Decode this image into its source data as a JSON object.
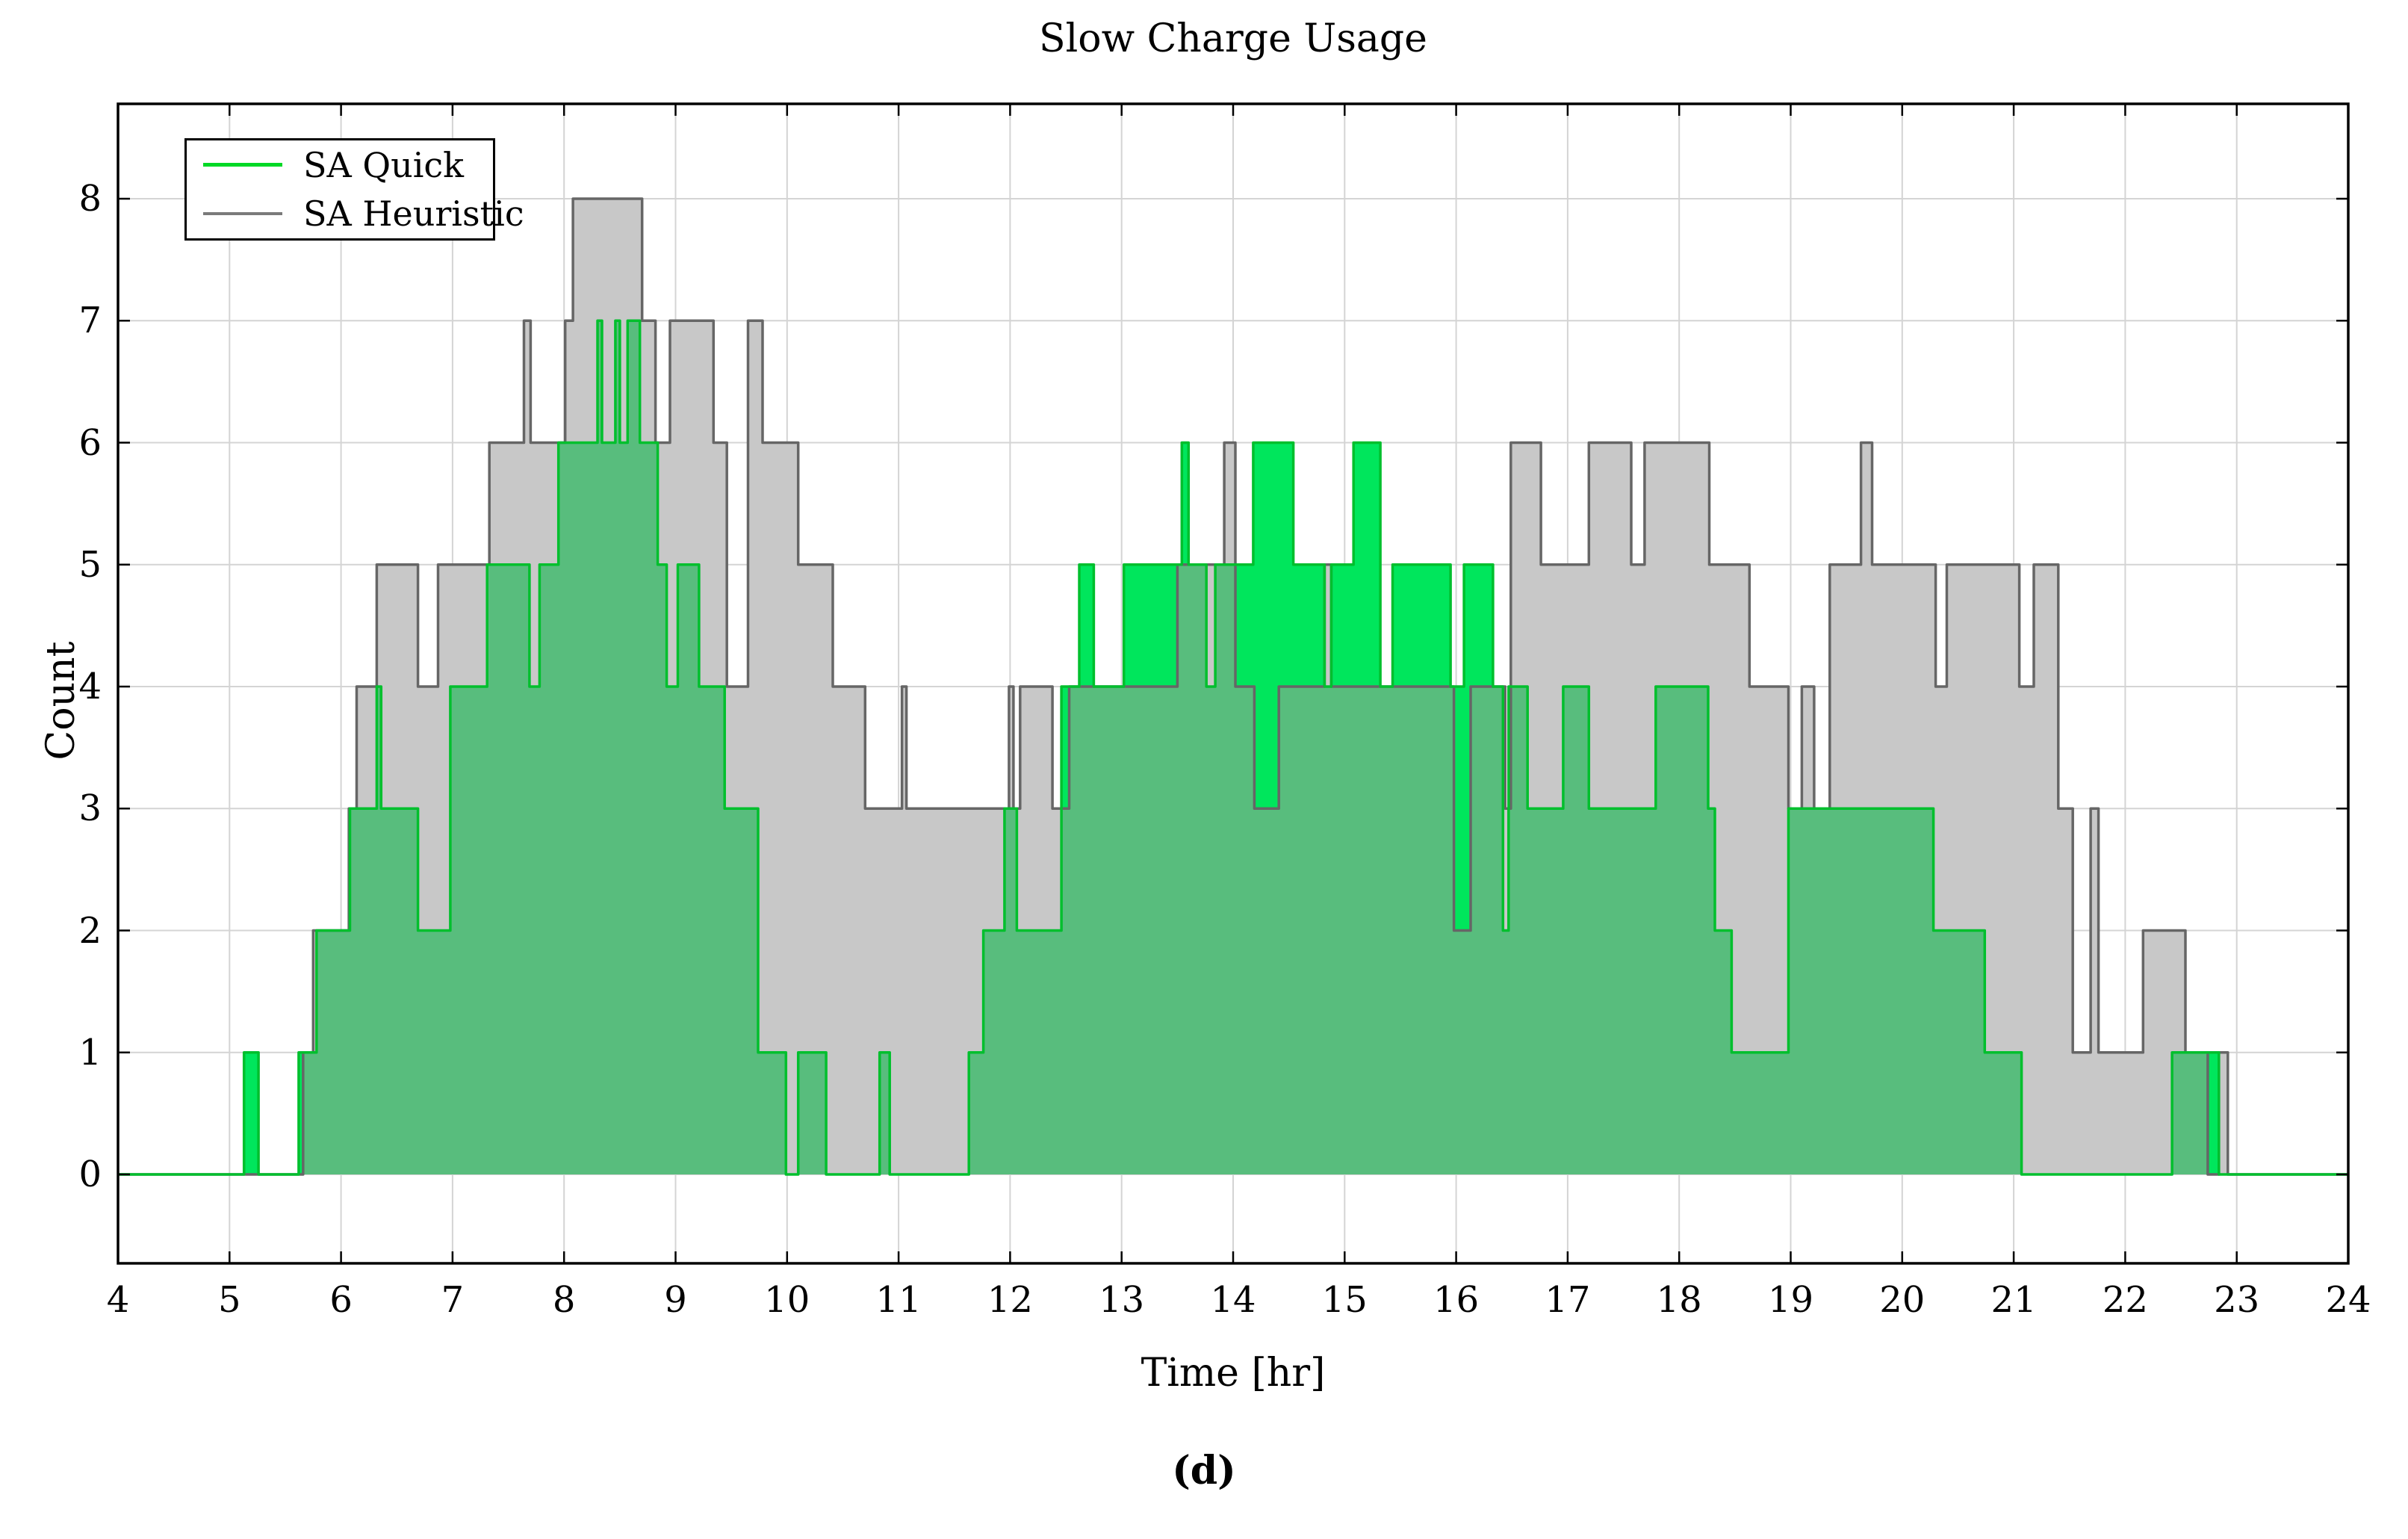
{
  "title": "Slow Charge Usage",
  "caption": "(d)",
  "axes": {
    "xlabel": "Time [hr]",
    "ylabel": "Count",
    "xticks": [
      4,
      5,
      6,
      7,
      8,
      9,
      10,
      11,
      12,
      13,
      14,
      15,
      16,
      17,
      18,
      19,
      20,
      21,
      22,
      23,
      24
    ],
    "yticks": [
      0,
      1,
      2,
      3,
      4,
      5,
      6,
      7,
      8
    ]
  },
  "legend": {
    "items": [
      {
        "label": "SA Quick",
        "color": "#00d926"
      },
      {
        "label": "SA Heuristic",
        "color": "#7a7a7a"
      }
    ]
  },
  "chart_data": {
    "type": "area",
    "subtype": "step-area-overlay",
    "title": "Slow Charge Usage",
    "xlabel": "Time [hr]",
    "ylabel": "Count",
    "xlim": [
      4,
      24
    ],
    "ylim": [
      0,
      8
    ],
    "grid": true,
    "legend_position": "top-left",
    "colors": {
      "quick_line": "#00bf2d",
      "quick_fill": "#00e65c",
      "heuristic_line": "#666666",
      "heuristic_fill": "#c8c8c8",
      "overlap_fill": "#58bd7d",
      "grid_color": "#d4d4d4",
      "spine_color": "#000000"
    },
    "series": [
      {
        "name": "SA Quick",
        "points": [
          [
            4,
            0
          ],
          [
            5.13,
            1
          ],
          [
            5.26,
            0
          ],
          [
            5.62,
            1
          ],
          [
            5.78,
            2
          ],
          [
            6.08,
            3
          ],
          [
            6.32,
            4
          ],
          [
            6.36,
            3
          ],
          [
            6.69,
            2
          ],
          [
            6.98,
            4
          ],
          [
            7.31,
            5
          ],
          [
            7.69,
            4
          ],
          [
            7.78,
            5
          ],
          [
            7.95,
            6
          ],
          [
            8.3,
            7
          ],
          [
            8.34,
            6
          ],
          [
            8.46,
            7
          ],
          [
            8.5,
            6
          ],
          [
            8.57,
            7
          ],
          [
            8.68,
            6
          ],
          [
            8.84,
            5
          ],
          [
            8.92,
            4
          ],
          [
            9.02,
            5
          ],
          [
            9.21,
            4
          ],
          [
            9.44,
            3
          ],
          [
            9.74,
            1
          ],
          [
            9.99,
            0
          ],
          [
            10.1,
            1
          ],
          [
            10.35,
            0
          ],
          [
            10.83,
            1
          ],
          [
            10.92,
            0
          ],
          [
            11.63,
            1
          ],
          [
            11.76,
            2
          ],
          [
            11.95,
            3
          ],
          [
            12.06,
            2
          ],
          [
            12.46,
            4
          ],
          [
            12.62,
            5
          ],
          [
            12.75,
            4
          ],
          [
            13.02,
            5
          ],
          [
            13.54,
            6
          ],
          [
            13.6,
            5
          ],
          [
            13.76,
            4
          ],
          [
            13.84,
            5
          ],
          [
            14.18,
            6
          ],
          [
            14.54,
            5
          ],
          [
            14.82,
            4
          ],
          [
            14.88,
            5
          ],
          [
            15.08,
            6
          ],
          [
            15.32,
            4
          ],
          [
            15.43,
            5
          ],
          [
            15.95,
            4
          ],
          [
            16.07,
            5
          ],
          [
            16.33,
            4
          ],
          [
            16.42,
            2
          ],
          [
            16.47,
            4
          ],
          [
            16.64,
            3
          ],
          [
            16.96,
            4
          ],
          [
            17.19,
            3
          ],
          [
            17.79,
            4
          ],
          [
            18.26,
            3
          ],
          [
            18.32,
            2
          ],
          [
            18.47,
            1
          ],
          [
            18.98,
            3
          ],
          [
            20.28,
            2
          ],
          [
            20.74,
            1
          ],
          [
            21.07,
            0
          ],
          [
            22.42,
            1
          ],
          [
            22.84,
            0
          ]
        ]
      },
      {
        "name": "SA Heuristic",
        "points": [
          [
            4,
            0
          ],
          [
            5.66,
            1
          ],
          [
            5.75,
            2
          ],
          [
            6.07,
            3
          ],
          [
            6.14,
            4
          ],
          [
            6.32,
            5
          ],
          [
            6.69,
            4
          ],
          [
            6.87,
            5
          ],
          [
            7.33,
            6
          ],
          [
            7.64,
            7
          ],
          [
            7.7,
            6
          ],
          [
            8.01,
            7
          ],
          [
            8.08,
            8
          ],
          [
            8.7,
            7
          ],
          [
            8.82,
            6
          ],
          [
            8.95,
            7
          ],
          [
            9.34,
            6
          ],
          [
            9.46,
            4
          ],
          [
            9.65,
            7
          ],
          [
            9.78,
            6
          ],
          [
            10.1,
            5
          ],
          [
            10.41,
            4
          ],
          [
            10.7,
            3
          ],
          [
            11.03,
            4
          ],
          [
            11.07,
            3
          ],
          [
            11.99,
            4
          ],
          [
            12.03,
            3
          ],
          [
            12.09,
            4
          ],
          [
            12.38,
            3
          ],
          [
            12.53,
            4
          ],
          [
            13.5,
            5
          ],
          [
            13.92,
            6
          ],
          [
            14.02,
            4
          ],
          [
            14.19,
            3
          ],
          [
            14.41,
            4
          ],
          [
            14.82,
            5
          ],
          [
            14.88,
            4
          ],
          [
            15.98,
            2
          ],
          [
            16.13,
            4
          ],
          [
            16.44,
            3
          ],
          [
            16.49,
            6
          ],
          [
            16.76,
            5
          ],
          [
            17.19,
            6
          ],
          [
            17.57,
            5
          ],
          [
            17.69,
            6
          ],
          [
            18.27,
            5
          ],
          [
            18.63,
            4
          ],
          [
            18.98,
            3
          ],
          [
            19.1,
            4
          ],
          [
            19.21,
            3
          ],
          [
            19.35,
            5
          ],
          [
            19.63,
            6
          ],
          [
            19.73,
            5
          ],
          [
            20.3,
            4
          ],
          [
            20.4,
            5
          ],
          [
            21.05,
            4
          ],
          [
            21.18,
            5
          ],
          [
            21.4,
            3
          ],
          [
            21.53,
            1
          ],
          [
            21.69,
            3
          ],
          [
            21.76,
            1
          ],
          [
            22.16,
            2
          ],
          [
            22.54,
            1
          ],
          [
            22.74,
            0
          ],
          [
            22.84,
            1
          ],
          [
            22.92,
            0
          ]
        ]
      }
    ]
  }
}
